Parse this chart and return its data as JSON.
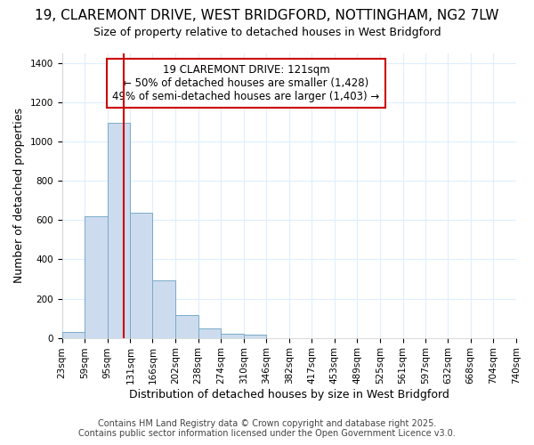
{
  "title_line1": "19, CLAREMONT DRIVE, WEST BRIDGFORD, NOTTINGHAM, NG2 7LW",
  "title_line2": "Size of property relative to detached houses in West Bridgford",
  "xlabel": "Distribution of detached houses by size in West Bridgford",
  "ylabel": "Number of detached properties",
  "bar_edges": [
    23,
    59,
    95,
    131,
    166,
    202,
    238,
    274,
    310,
    346,
    382,
    417,
    453,
    489,
    525,
    561,
    597,
    632,
    668,
    704,
    740
  ],
  "bar_heights": [
    30,
    620,
    1095,
    640,
    295,
    115,
    50,
    20,
    15,
    0,
    0,
    0,
    0,
    0,
    0,
    0,
    0,
    0,
    0,
    0
  ],
  "bar_color": "#ccdcee",
  "bar_edge_color": "#7aaac8",
  "vline_x": 121,
  "vline_color": "#cc0000",
  "annotation_text": "19 CLAREMONT DRIVE: 121sqm\n← 50% of detached houses are smaller (1,428)\n49% of semi-detached houses are larger (1,403) →",
  "ylim": [
    0,
    1450
  ],
  "xlim_left": 23,
  "xlim_right": 740,
  "background_color": "#ffffff",
  "plot_bg_color": "#ffffff",
  "grid_color": "#ddeeff",
  "footnote1": "Contains HM Land Registry data © Crown copyright and database right 2025.",
  "footnote2": "Contains public sector information licensed under the Open Government Licence v3.0.",
  "title1_fontsize": 11,
  "title2_fontsize": 9,
  "ylabel_fontsize": 9,
  "xlabel_fontsize": 9,
  "tick_fontsize": 7.5,
  "annot_fontsize": 8.5,
  "footnote_fontsize": 7
}
